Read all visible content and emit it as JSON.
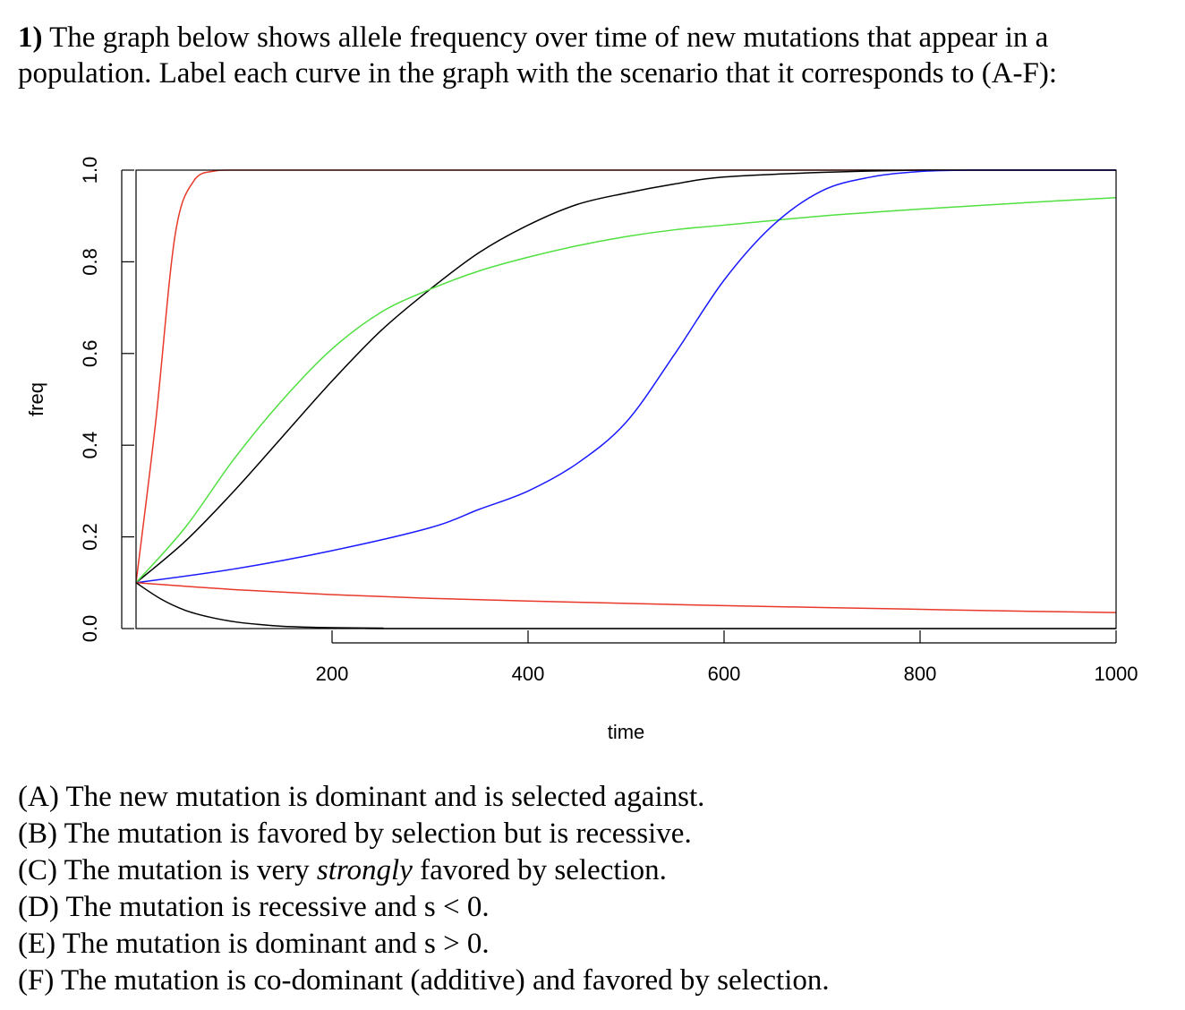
{
  "question": {
    "number": "1)",
    "text": " The graph below shows allele frequency over time of new mutations that appear in a population.  Label each curve in the graph with the scenario that it corresponds to (A-F):"
  },
  "chart_data": {
    "type": "line",
    "xlabel": "time",
    "ylabel": "freq",
    "xlim": [
      0,
      1000
    ],
    "ylim": [
      0,
      1
    ],
    "xticks": [
      200,
      400,
      600,
      800,
      1000
    ],
    "yticks": [
      0.0,
      0.2,
      0.4,
      0.6,
      0.8,
      1.0
    ],
    "ytick_labels": [
      "0.0",
      "0.2",
      "0.4",
      "0.6",
      "0.8",
      "1.0"
    ],
    "grid": false,
    "legend": "none",
    "series": [
      {
        "color": "#e8392b",
        "x": [
          0,
          20,
          40,
          60,
          80,
          100,
          200,
          1000
        ],
        "y": [
          0.1,
          0.45,
          0.86,
          0.98,
          0.998,
          1.0,
          1.0,
          1.0
        ]
      },
      {
        "color": "#000000",
        "x": [
          0,
          50,
          100,
          150,
          200,
          250,
          300,
          350,
          400,
          450,
          500,
          550,
          600,
          700,
          800,
          900,
          1000
        ],
        "y": [
          0.1,
          0.19,
          0.3,
          0.42,
          0.54,
          0.65,
          0.74,
          0.82,
          0.88,
          0.925,
          0.95,
          0.97,
          0.985,
          0.995,
          1.0,
          1.0,
          1.0
        ]
      },
      {
        "color": "#50e040",
        "x": [
          0,
          50,
          100,
          150,
          200,
          250,
          300,
          350,
          400,
          450,
          500,
          550,
          600,
          700,
          800,
          900,
          1000
        ],
        "y": [
          0.1,
          0.22,
          0.37,
          0.5,
          0.61,
          0.69,
          0.74,
          0.78,
          0.81,
          0.835,
          0.855,
          0.87,
          0.88,
          0.9,
          0.915,
          0.928,
          0.94
        ]
      },
      {
        "color": "#1a1aff",
        "x": [
          0,
          100,
          200,
          300,
          350,
          400,
          450,
          500,
          550,
          600,
          650,
          700,
          750,
          800,
          850,
          900,
          1000
        ],
        "y": [
          0.1,
          0.13,
          0.17,
          0.22,
          0.26,
          0.3,
          0.36,
          0.45,
          0.6,
          0.76,
          0.88,
          0.955,
          0.985,
          0.997,
          1.0,
          1.0,
          1.0
        ]
      },
      {
        "color": "#e8392b",
        "x": [
          0,
          100,
          200,
          300,
          400,
          500,
          600,
          700,
          800,
          900,
          1000
        ],
        "y": [
          0.1,
          0.085,
          0.074,
          0.066,
          0.06,
          0.055,
          0.05,
          0.046,
          0.042,
          0.038,
          0.035
        ]
      },
      {
        "color": "#000000",
        "x": [
          0,
          25,
          50,
          75,
          100,
          125,
          150,
          200,
          250,
          300,
          1000
        ],
        "y": [
          0.1,
          0.065,
          0.04,
          0.025,
          0.015,
          0.009,
          0.005,
          0.002,
          0.001,
          0.0,
          0.0
        ]
      }
    ]
  },
  "options": [
    {
      "before": "(A) The new mutation is dominant and is selected against.",
      "emph": "",
      "after": ""
    },
    {
      "before": "(B) The mutation is favored by selection but is recessive.",
      "emph": "",
      "after": ""
    },
    {
      "before": "(C) The mutation is very ",
      "emph": "strongly",
      "after": " favored by selection."
    },
    {
      "before": "(D) The mutation is recessive and s < 0.",
      "emph": "",
      "after": ""
    },
    {
      "before": "(E) The mutation is dominant and s > 0.",
      "emph": "",
      "after": ""
    },
    {
      "before": "(F) The mutation is co-dominant (additive) and favored by selection.",
      "emph": "",
      "after": ""
    }
  ]
}
